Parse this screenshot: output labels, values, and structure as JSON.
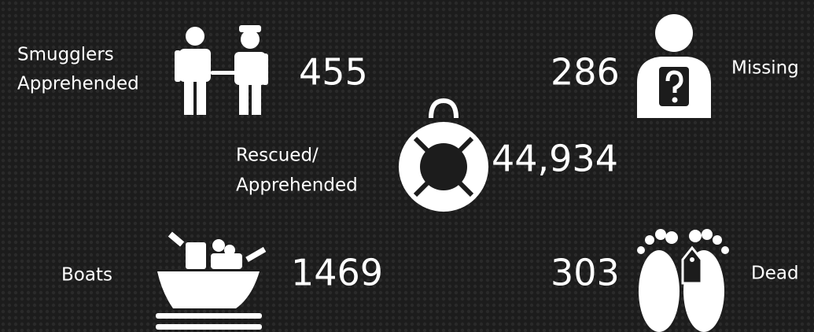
{
  "items": [
    {
      "label": [
        "Smugglers",
        "Apprehended"
      ],
      "value": "455"
    },
    {
      "label": [
        "Missing"
      ],
      "value": "286"
    },
    {
      "label": [
        "Rescued/",
        "Apprehended"
      ],
      "value": "44,934"
    },
    {
      "label": [
        "Boats"
      ],
      "value": "1469"
    },
    {
      "label": [
        "Dead"
      ],
      "value": "303"
    }
  ]
}
